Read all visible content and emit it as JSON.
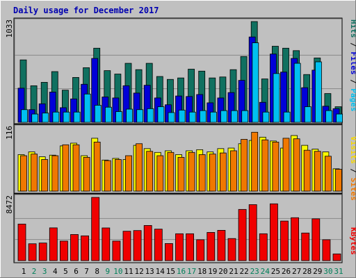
{
  "chart_data": [
    {
      "type": "bar",
      "title": "Daily usage for December 2017",
      "categories": [
        "1",
        "2",
        "3",
        "4",
        "5",
        "6",
        "7",
        "8",
        "9",
        "10",
        "11",
        "12",
        "13",
        "14",
        "15",
        "16",
        "17",
        "18",
        "19",
        "20",
        "21",
        "22",
        "23",
        "24",
        "25",
        "26",
        "27",
        "28",
        "29",
        "30",
        "31"
      ],
      "weekend_days": [
        "2",
        "3",
        "9",
        "10",
        "16",
        "17",
        "23",
        "24",
        "30",
        "31"
      ],
      "y_max_label": "1033",
      "ylim": [
        0,
        1033
      ],
      "ylabel_parts": [
        "Pages",
        "Files",
        "Hits"
      ],
      "series": [
        {
          "name": "Hits",
          "color": "#107060",
          "values": [
            640,
            375,
            410,
            520,
            330,
            460,
            560,
            760,
            530,
            495,
            605,
            540,
            605,
            470,
            440,
            455,
            545,
            525,
            455,
            465,
            540,
            675,
            1033,
            445,
            780,
            760,
            735,
            490,
            660,
            295,
            160
          ]
        },
        {
          "name": "Files",
          "color": "#0000d8",
          "values": [
            350,
            130,
            190,
            310,
            150,
            240,
            390,
            655,
            260,
            250,
            375,
            300,
            380,
            250,
            180,
            270,
            265,
            285,
            200,
            250,
            305,
            430,
            875,
            205,
            700,
            515,
            655,
            355,
            535,
            165,
            140
          ]
        },
        {
          "name": "Pages",
          "color": "#00c0f0",
          "values": [
            130,
            85,
            95,
            105,
            105,
            105,
            290,
            175,
            155,
            110,
            135,
            130,
            140,
            160,
            100,
            125,
            105,
            120,
            105,
            120,
            120,
            120,
            815,
            105,
            500,
            105,
            605,
            160,
            620,
            120,
            85
          ]
        }
      ]
    },
    {
      "type": "bar",
      "categories": [
        "1",
        "2",
        "3",
        "4",
        "5",
        "6",
        "7",
        "8",
        "9",
        "10",
        "11",
        "12",
        "13",
        "14",
        "15",
        "16",
        "17",
        "18",
        "19",
        "20",
        "21",
        "22",
        "23",
        "24",
        "25",
        "26",
        "27",
        "28",
        "29",
        "30",
        "31"
      ],
      "y_max_label": "116",
      "ylim": [
        0,
        116
      ],
      "ylabel_parts": [
        "Sites",
        "Visits"
      ],
      "series": [
        {
          "name": "Visits",
          "color": "#f8f800",
          "values": [
            67,
            72,
            63,
            66,
            83,
            88,
            65,
            97,
            57,
            60,
            58,
            84,
            78,
            71,
            74,
            67,
            74,
            76,
            72,
            78,
            79,
            87,
            93,
            99,
            92,
            79,
            102,
            84,
            77,
            72,
            41
          ]
        },
        {
          "name": "Sites",
          "color": "#f07800",
          "values": [
            65,
            68,
            58,
            65,
            85,
            85,
            62,
            90,
            56,
            58,
            65,
            87,
            73,
            65,
            71,
            62,
            71,
            67,
            68,
            70,
            74,
            95,
            108,
            94,
            90,
            97,
            96,
            75,
            73,
            64,
            40
          ]
        }
      ]
    },
    {
      "type": "bar",
      "categories": [
        "1",
        "2",
        "3",
        "4",
        "5",
        "6",
        "7",
        "8",
        "9",
        "10",
        "11",
        "12",
        "13",
        "14",
        "15",
        "16",
        "17",
        "18",
        "19",
        "20",
        "21",
        "22",
        "23",
        "24",
        "25",
        "26",
        "27",
        "28",
        "29",
        "30",
        "31"
      ],
      "y_max_label": "8472",
      "ylim": [
        0,
        8472
      ],
      "ylabel_parts": [
        "KBytes"
      ],
      "series": [
        {
          "name": "KBytes",
          "color": "#f00000",
          "values": [
            4900,
            2260,
            2360,
            4390,
            2620,
            3500,
            3320,
            8472,
            4380,
            2620,
            3940,
            4030,
            4710,
            4220,
            2290,
            3600,
            3600,
            2800,
            3780,
            4060,
            2960,
            6860,
            7500,
            3600,
            7610,
            5300,
            5750,
            3700,
            5600,
            2800,
            900
          ]
        }
      ]
    }
  ]
}
